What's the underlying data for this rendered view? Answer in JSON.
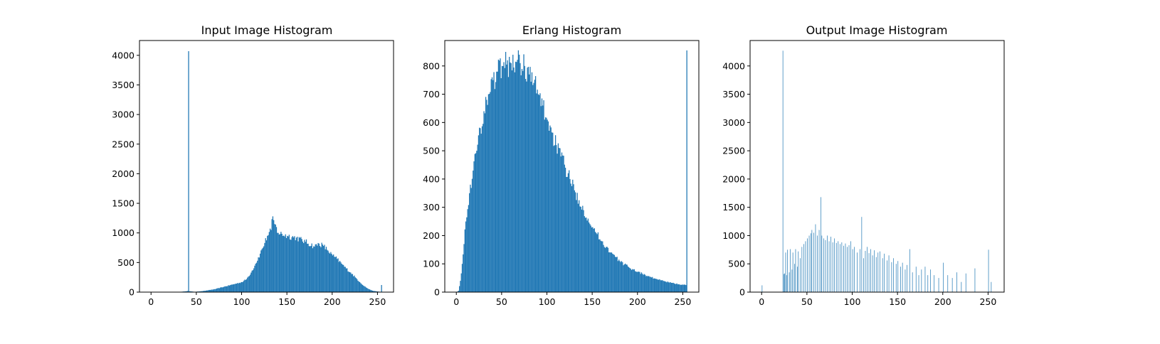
{
  "chart_data": [
    {
      "type": "bar",
      "title": "Input Image Histogram",
      "xlabel": "",
      "ylabel": "",
      "xlim": [
        -12.75,
        267.75
      ],
      "ylim": [
        0,
        4250
      ],
      "xticks": [
        0,
        50,
        100,
        150,
        200,
        250
      ],
      "yticks": [
        0,
        500,
        1000,
        1500,
        2000,
        2500,
        3000,
        3500,
        4000
      ],
      "grid": false,
      "color": "#1f77b4",
      "anchors": [
        [
          0,
          0
        ],
        [
          30,
          0
        ],
        [
          35,
          10
        ],
        [
          39,
          15
        ],
        [
          40,
          20
        ],
        [
          41,
          4070
        ],
        [
          42,
          15
        ],
        [
          48,
          5
        ],
        [
          55,
          15
        ],
        [
          60,
          25
        ],
        [
          70,
          50
        ],
        [
          80,
          90
        ],
        [
          90,
          130
        ],
        [
          100,
          170
        ],
        [
          105,
          220
        ],
        [
          110,
          330
        ],
        [
          115,
          480
        ],
        [
          120,
          650
        ],
        [
          125,
          830
        ],
        [
          128,
          950
        ],
        [
          132,
          1050
        ],
        [
          134,
          1280
        ],
        [
          136,
          1150
        ],
        [
          140,
          1000
        ],
        [
          150,
          950
        ],
        [
          160,
          920
        ],
        [
          170,
          850
        ],
        [
          180,
          770
        ],
        [
          185,
          820
        ],
        [
          190,
          780
        ],
        [
          195,
          700
        ],
        [
          200,
          620
        ],
        [
          205,
          560
        ],
        [
          210,
          480
        ],
        [
          215,
          400
        ],
        [
          220,
          330
        ],
        [
          225,
          250
        ],
        [
          230,
          170
        ],
        [
          235,
          100
        ],
        [
          240,
          50
        ],
        [
          245,
          20
        ],
        [
          250,
          10
        ],
        [
          252,
          5
        ],
        [
          253,
          5
        ],
        [
          254,
          120
        ],
        [
          255,
          0
        ]
      ]
    },
    {
      "type": "bar",
      "title": "Erlang Histogram",
      "xlabel": "",
      "ylabel": "",
      "xlim": [
        -12.75,
        267.75
      ],
      "ylim": [
        0,
        890
      ],
      "xticks": [
        0,
        50,
        100,
        150,
        200,
        250
      ],
      "yticks": [
        0,
        100,
        200,
        300,
        400,
        500,
        600,
        700,
        800
      ],
      "grid": false,
      "color": "#1f77b4",
      "anchors": [
        [
          0,
          0
        ],
        [
          2,
          5
        ],
        [
          4,
          40
        ],
        [
          6,
          100
        ],
        [
          8,
          170
        ],
        [
          10,
          250
        ],
        [
          14,
          350
        ],
        [
          18,
          430
        ],
        [
          22,
          500
        ],
        [
          26,
          580
        ],
        [
          30,
          640
        ],
        [
          35,
          700
        ],
        [
          40,
          750
        ],
        [
          45,
          780
        ],
        [
          50,
          800
        ],
        [
          55,
          805
        ],
        [
          60,
          810
        ],
        [
          65,
          815
        ],
        [
          70,
          810
        ],
        [
          75,
          800
        ],
        [
          80,
          770
        ],
        [
          85,
          740
        ],
        [
          90,
          700
        ],
        [
          95,
          660
        ],
        [
          100,
          610
        ],
        [
          105,
          565
        ],
        [
          110,
          520
        ],
        [
          115,
          480
        ],
        [
          120,
          440
        ],
        [
          125,
          400
        ],
        [
          130,
          360
        ],
        [
          135,
          325
        ],
        [
          140,
          290
        ],
        [
          145,
          260
        ],
        [
          150,
          230
        ],
        [
          155,
          205
        ],
        [
          160,
          180
        ],
        [
          165,
          160
        ],
        [
          170,
          140
        ],
        [
          175,
          125
        ],
        [
          180,
          110
        ],
        [
          185,
          98
        ],
        [
          190,
          88
        ],
        [
          195,
          80
        ],
        [
          200,
          72
        ],
        [
          205,
          65
        ],
        [
          210,
          58
        ],
        [
          215,
          52
        ],
        [
          220,
          47
        ],
        [
          225,
          42
        ],
        [
          230,
          38
        ],
        [
          235,
          34
        ],
        [
          240,
          31
        ],
        [
          245,
          28
        ],
        [
          250,
          26
        ],
        [
          253,
          25
        ],
        [
          254,
          855
        ],
        [
          255,
          0
        ]
      ]
    },
    {
      "type": "bar",
      "title": "Output Image Histogram",
      "xlabel": "",
      "ylabel": "",
      "xlim": [
        -12.75,
        267.75
      ],
      "ylim": [
        0,
        4450
      ],
      "xticks": [
        0,
        50,
        100,
        150,
        200,
        250
      ],
      "yticks": [
        0,
        500,
        1000,
        1500,
        2000,
        2500,
        3000,
        3500,
        4000
      ],
      "grid": false,
      "color": "#1f77b4",
      "bars": [
        [
          0,
          120
        ],
        [
          23,
          4270
        ],
        [
          24,
          320
        ],
        [
          25,
          330
        ],
        [
          26,
          700
        ],
        [
          27,
          300
        ],
        [
          28,
          750
        ],
        [
          30,
          350
        ],
        [
          31,
          760
        ],
        [
          33,
          400
        ],
        [
          34,
          700
        ],
        [
          36,
          500
        ],
        [
          37,
          760
        ],
        [
          39,
          450
        ],
        [
          40,
          720
        ],
        [
          42,
          600
        ],
        [
          44,
          800
        ],
        [
          46,
          850
        ],
        [
          48,
          900
        ],
        [
          50,
          950
        ],
        [
          52,
          1000
        ],
        [
          54,
          1040
        ],
        [
          55,
          1100
        ],
        [
          57,
          1050
        ],
        [
          59,
          1200
        ],
        [
          61,
          1000
        ],
        [
          63,
          1100
        ],
        [
          65,
          1680
        ],
        [
          66,
          1000
        ],
        [
          68,
          950
        ],
        [
          70,
          920
        ],
        [
          72,
          1000
        ],
        [
          74,
          900
        ],
        [
          76,
          980
        ],
        [
          78,
          880
        ],
        [
          80,
          950
        ],
        [
          82,
          870
        ],
        [
          84,
          900
        ],
        [
          86,
          850
        ],
        [
          88,
          880
        ],
        [
          90,
          820
        ],
        [
          92,
          860
        ],
        [
          94,
          800
        ],
        [
          96,
          830
        ],
        [
          98,
          900
        ],
        [
          100,
          760
        ],
        [
          102,
          800
        ],
        [
          105,
          700
        ],
        [
          108,
          760
        ],
        [
          110,
          1330
        ],
        [
          112,
          600
        ],
        [
          114,
          730
        ],
        [
          116,
          800
        ],
        [
          118,
          690
        ],
        [
          120,
          760
        ],
        [
          122,
          650
        ],
        [
          124,
          740
        ],
        [
          126,
          620
        ],
        [
          128,
          700
        ],
        [
          130,
          720
        ],
        [
          133,
          600
        ],
        [
          135,
          680
        ],
        [
          138,
          560
        ],
        [
          140,
          650
        ],
        [
          143,
          530
        ],
        [
          145,
          600
        ],
        [
          148,
          500
        ],
        [
          150,
          550
        ],
        [
          153,
          450
        ],
        [
          155,
          520
        ],
        [
          158,
          400
        ],
        [
          160,
          480
        ],
        [
          163,
          760
        ],
        [
          166,
          350
        ],
        [
          170,
          450
        ],
        [
          173,
          300
        ],
        [
          176,
          400
        ],
        [
          180,
          450
        ],
        [
          183,
          300
        ],
        [
          186,
          400
        ],
        [
          190,
          300
        ],
        [
          195,
          250
        ],
        [
          200,
          520
        ],
        [
          205,
          300
        ],
        [
          210,
          250
        ],
        [
          215,
          350
        ],
        [
          220,
          180
        ],
        [
          225,
          330
        ],
        [
          235,
          420
        ],
        [
          250,
          750
        ],
        [
          253,
          180
        ]
      ]
    }
  ]
}
